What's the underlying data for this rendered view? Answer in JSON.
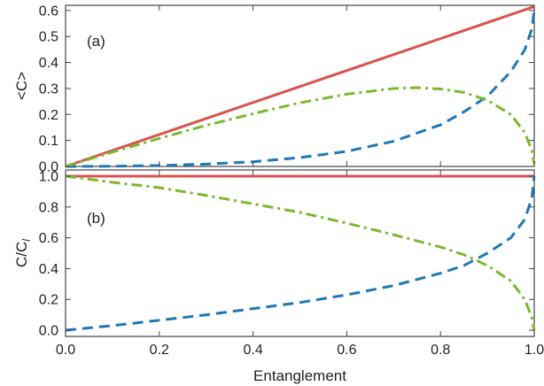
{
  "chart_data": [
    {
      "type": "line",
      "panel_label": "(a)",
      "ylabel": "<C>",
      "xlim": [
        0,
        1
      ],
      "ylim": [
        0,
        0.62
      ],
      "yticks": [
        "0.0",
        "0.1",
        "0.2",
        "0.3",
        "0.4",
        "0.5",
        "0.6"
      ],
      "yticks_values": [
        0,
        0.1,
        0.2,
        0.3,
        0.4,
        0.5,
        0.6
      ],
      "series": [
        {
          "color": "#d9534f",
          "style": "solid",
          "points": [
            [
              0,
              0
            ],
            [
              1,
              0.615
            ]
          ]
        },
        {
          "color": "#1f78b4",
          "style": "dashed",
          "points": [
            [
              0,
              0
            ],
            [
              0.1,
              0.0008
            ],
            [
              0.2,
              0.0035
            ],
            [
              0.3,
              0.009
            ],
            [
              0.4,
              0.018
            ],
            [
              0.5,
              0.034
            ],
            [
              0.6,
              0.058
            ],
            [
              0.7,
              0.097
            ],
            [
              0.8,
              0.16
            ],
            [
              0.85,
              0.21
            ],
            [
              0.9,
              0.27
            ],
            [
              0.95,
              0.365
            ],
            [
              0.98,
              0.45
            ],
            [
              0.995,
              0.53
            ],
            [
              1,
              0.6
            ]
          ]
        },
        {
          "color": "#7cb82f",
          "style": "dashdot",
          "points": [
            [
              0,
              0
            ],
            [
              0.1,
              0.055
            ],
            [
              0.2,
              0.108
            ],
            [
              0.3,
              0.158
            ],
            [
              0.4,
              0.203
            ],
            [
              0.5,
              0.245
            ],
            [
              0.6,
              0.278
            ],
            [
              0.7,
              0.3
            ],
            [
              0.75,
              0.303
            ],
            [
              0.8,
              0.298
            ],
            [
              0.85,
              0.285
            ],
            [
              0.9,
              0.255
            ],
            [
              0.95,
              0.2
            ],
            [
              0.98,
              0.13
            ],
            [
              0.995,
              0.06
            ],
            [
              1,
              0.01
            ]
          ]
        }
      ]
    },
    {
      "type": "line",
      "panel_label": "(b)",
      "ylabel_main": "C/C",
      "ylabel_sub": "l",
      "xlabel": "Entanglement",
      "xlim": [
        0,
        1
      ],
      "ylim": [
        -0.04,
        1.04
      ],
      "xticks": [
        "0.0",
        "0.2",
        "0.4",
        "0.6",
        "0.8",
        "1.0"
      ],
      "xticks_values": [
        0,
        0.2,
        0.4,
        0.6,
        0.8,
        1.0
      ],
      "yticks": [
        "0.0",
        "0.2",
        "0.4",
        "0.6",
        "0.8",
        "1.0"
      ],
      "yticks_values": [
        0,
        0.2,
        0.4,
        0.6,
        0.8,
        1.0
      ],
      "series": [
        {
          "color": "#d9534f",
          "style": "solid",
          "points": [
            [
              0,
              1
            ],
            [
              1,
              1
            ]
          ]
        },
        {
          "color": "#1f78b4",
          "style": "dashed",
          "points": [
            [
              0,
              0
            ],
            [
              0.1,
              0.03
            ],
            [
              0.2,
              0.065
            ],
            [
              0.3,
              0.1
            ],
            [
              0.4,
              0.14
            ],
            [
              0.5,
              0.18
            ],
            [
              0.6,
              0.23
            ],
            [
              0.7,
              0.29
            ],
            [
              0.8,
              0.37
            ],
            [
              0.85,
              0.42
            ],
            [
              0.9,
              0.5
            ],
            [
              0.95,
              0.6
            ],
            [
              0.98,
              0.72
            ],
            [
              0.995,
              0.86
            ],
            [
              1,
              1
            ]
          ]
        },
        {
          "color": "#7cb82f",
          "style": "dashdot",
          "points": [
            [
              0,
              1
            ],
            [
              0.1,
              0.96
            ],
            [
              0.2,
              0.925
            ],
            [
              0.3,
              0.875
            ],
            [
              0.4,
              0.82
            ],
            [
              0.5,
              0.765
            ],
            [
              0.6,
              0.695
            ],
            [
              0.7,
              0.62
            ],
            [
              0.8,
              0.54
            ],
            [
              0.85,
              0.49
            ],
            [
              0.9,
              0.42
            ],
            [
              0.95,
              0.32
            ],
            [
              0.98,
              0.2
            ],
            [
              0.995,
              0.08
            ],
            [
              1,
              0
            ]
          ]
        }
      ]
    }
  ]
}
